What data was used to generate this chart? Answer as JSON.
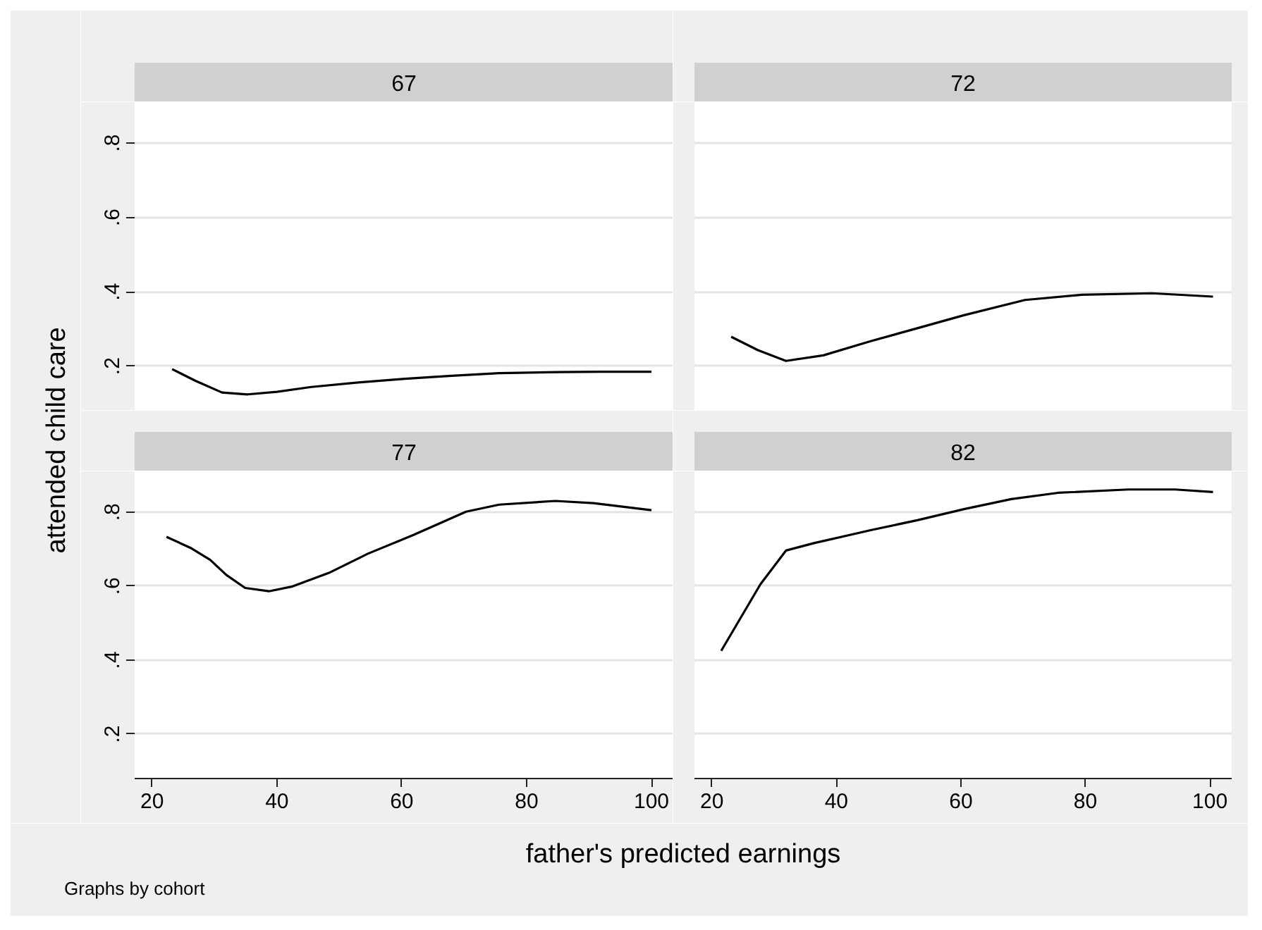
{
  "chart_data": [
    {
      "type": "line",
      "title": "67",
      "ylabel": "attended child care",
      "xlabel": "father's predicted earnings",
      "annotations": [
        "Graphs by cohort"
      ],
      "x": [
        23.2,
        27,
        31.2,
        35.3,
        40,
        45.5,
        53,
        60.5,
        68,
        75.6,
        85,
        92,
        100
      ],
      "values": [
        0.192,
        0.16,
        0.129,
        0.124,
        0.131,
        0.144,
        0.156,
        0.166,
        0.174,
        0.181,
        0.184,
        0.185,
        0.185
      ],
      "color": "#000000",
      "xlim": [
        17.2,
        103.5
      ],
      "ylim": [
        0.08,
        0.91
      ],
      "yticks": [
        {
          "value": 0.2,
          "label": ".2"
        },
        {
          "value": 0.4,
          "label": ".4"
        },
        {
          "value": 0.6,
          "label": ".6"
        },
        {
          "value": 0.8,
          "label": ".8"
        }
      ],
      "grid": "y",
      "tick_labels": "y"
    },
    {
      "type": "line",
      "title": "72",
      "x": [
        23.1,
        27.4,
        31.9,
        37.9,
        45.5,
        53,
        60.5,
        70.3,
        79.4,
        90.7,
        100.5
      ],
      "values": [
        0.279,
        0.243,
        0.214,
        0.229,
        0.267,
        0.302,
        0.337,
        0.378,
        0.392,
        0.396,
        0.387
      ],
      "color": "#000000",
      "xlim": [
        17.2,
        103.5
      ],
      "ylim": [
        0.08,
        0.91
      ],
      "yticks": [
        0.2,
        0.4,
        0.6,
        0.8
      ],
      "grid": "y",
      "tick_labels": false
    },
    {
      "type": "line",
      "title": "77",
      "x": [
        22.3,
        26.3,
        29.3,
        31.9,
        34.9,
        38.7,
        42.5,
        48.5,
        54.5,
        62,
        70.3,
        75.6,
        84.6,
        90.7,
        100
      ],
      "values": [
        0.733,
        0.702,
        0.671,
        0.63,
        0.595,
        0.586,
        0.599,
        0.637,
        0.687,
        0.739,
        0.801,
        0.82,
        0.83,
        0.824,
        0.805
      ],
      "color": "#000000",
      "xlim": [
        17.2,
        103.5
      ],
      "ylim": [
        0.08,
        0.91
      ],
      "xticks": [
        20,
        40,
        60,
        80,
        100
      ],
      "yticks": [
        {
          "value": 0.2,
          "label": ".2"
        },
        {
          "value": 0.4,
          "label": ".4"
        },
        {
          "value": 0.6,
          "label": ".6"
        },
        {
          "value": 0.8,
          "label": ".8"
        }
      ],
      "grid": "y"
    },
    {
      "type": "line",
      "title": "82",
      "x": [
        21.5,
        27.8,
        31.9,
        36.4,
        45.5,
        53,
        60.5,
        68.1,
        75.6,
        86.9,
        94.4,
        100.5
      ],
      "values": [
        0.425,
        0.605,
        0.696,
        0.716,
        0.751,
        0.778,
        0.808,
        0.835,
        0.852,
        0.861,
        0.861,
        0.854
      ],
      "color": "#000000",
      "xlim": [
        17.2,
        103.5
      ],
      "ylim": [
        0.08,
        0.91
      ],
      "xticks": [
        20,
        40,
        60,
        80,
        100
      ],
      "yticks": [
        0.2,
        0.4,
        0.6,
        0.8
      ],
      "grid": "y",
      "tick_labels": "x"
    }
  ]
}
